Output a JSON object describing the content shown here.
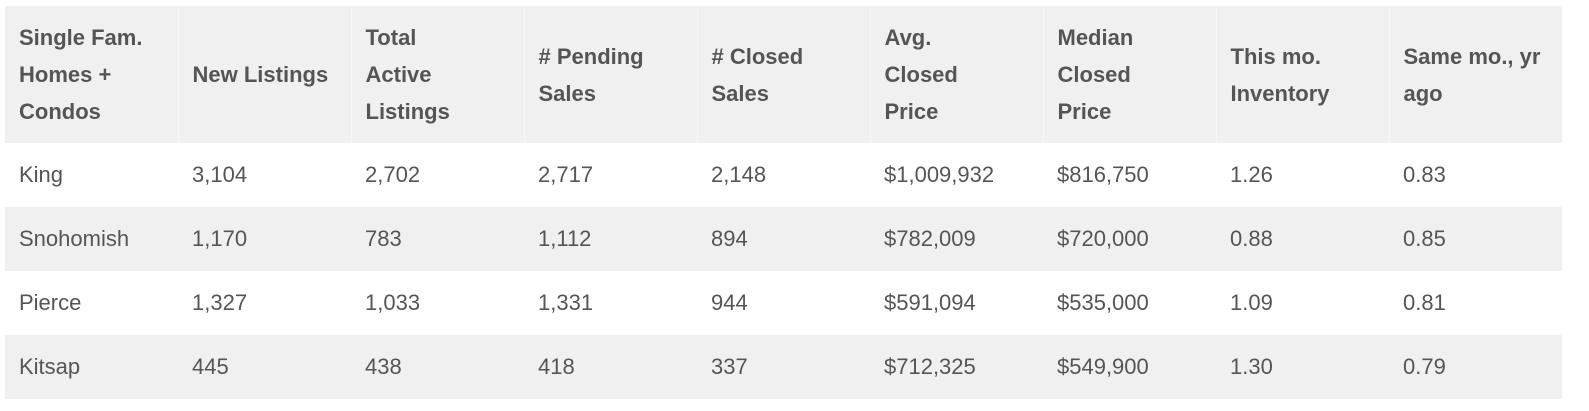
{
  "table": {
    "header": [
      [
        "Single Fam.",
        "Homes +",
        "Condos"
      ],
      [
        "New Listings"
      ],
      [
        "Total",
        "Active",
        "Listings"
      ],
      [
        "# Pending",
        "Sales"
      ],
      [
        "# Closed",
        "Sales"
      ],
      [
        "Avg.",
        "Closed",
        "Price"
      ],
      [
        "Median",
        "Closed",
        "Price"
      ],
      [
        "This mo.",
        "Inventory"
      ],
      [
        "Same mo., yr",
        "ago"
      ]
    ],
    "rows": [
      [
        "King",
        "3,104",
        "2,702",
        "2,717",
        "2,148",
        "$1,009,932",
        "$816,750",
        "1.26",
        "0.83"
      ],
      [
        "Snohomish",
        "1,170",
        "783",
        "1,112",
        "894",
        "$782,009",
        "$720,000",
        "0.88",
        "0.85"
      ],
      [
        "Pierce",
        "1,327",
        "1,033",
        "1,331",
        "944",
        "$591,094",
        "$535,000",
        "1.09",
        "0.81"
      ],
      [
        "Kitsap",
        "445",
        "438",
        "418",
        "337",
        "$712,325",
        "$549,900",
        "1.30",
        "0.79"
      ]
    ]
  }
}
